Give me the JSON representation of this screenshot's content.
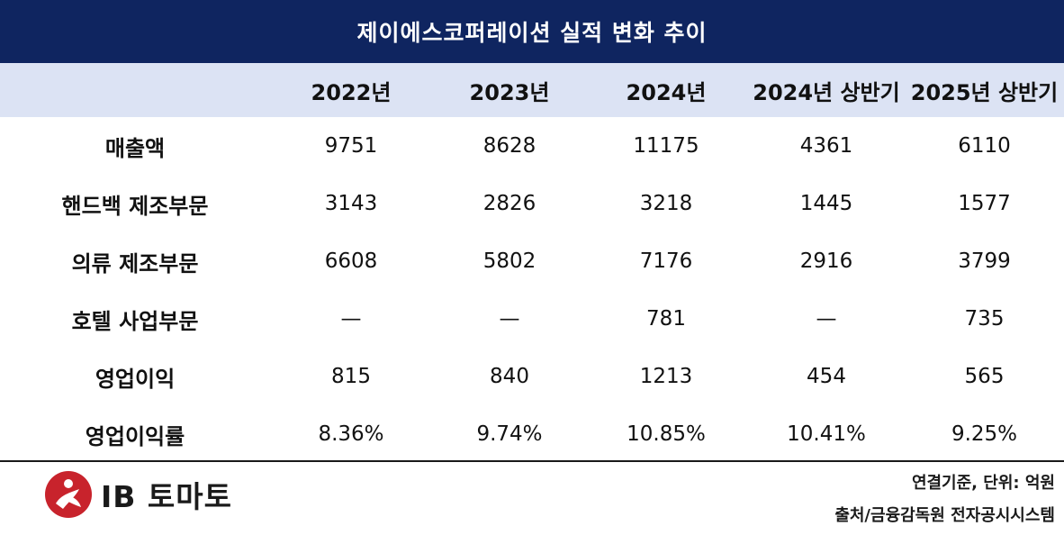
{
  "title": "제이에스코퍼레이션 실적 변화 추이",
  "columns": [
    "",
    "2022년",
    "2023년",
    "2024년",
    "2024년 상반기",
    "2025년 상반기"
  ],
  "rows": [
    {
      "label": "매출액",
      "values": [
        "9751",
        "8628",
        "11175",
        "4361",
        "6110"
      ]
    },
    {
      "label": "핸드백 제조부문",
      "values": [
        "3143",
        "2826",
        "3218",
        "1445",
        "1577"
      ]
    },
    {
      "label": "의류 제조부문",
      "values": [
        "6608",
        "5802",
        "7176",
        "2916",
        "3799"
      ]
    },
    {
      "label": "호텔 사업부문",
      "values": [
        "—",
        "—",
        "781",
        "—",
        "735"
      ]
    },
    {
      "label": "영업이익",
      "values": [
        "815",
        "840",
        "1213",
        "454",
        "565"
      ]
    },
    {
      "label": "영업이익률",
      "values": [
        "8.36%",
        "9.74%",
        "10.85%",
        "10.41%",
        "9.25%"
      ]
    }
  ],
  "footer": {
    "logo_text": "IB 토마토",
    "unit_note": "연결기준, 단위: 억원",
    "source_note": "출처/금융감독원 전자공시시스템"
  },
  "colors": {
    "title_bg": "#0f2560",
    "header_bg": "#dce3f4",
    "logo_red": "#c8232c"
  },
  "icons": {
    "logo": "ib-tomato-logo-icon"
  }
}
